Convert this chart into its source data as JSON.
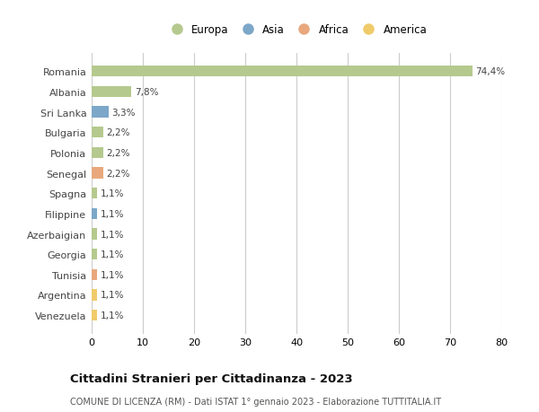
{
  "countries": [
    "Romania",
    "Albania",
    "Sri Lanka",
    "Bulgaria",
    "Polonia",
    "Senegal",
    "Spagna",
    "Filippine",
    "Azerbaigian",
    "Georgia",
    "Tunisia",
    "Argentina",
    "Venezuela"
  ],
  "values": [
    74.4,
    7.8,
    3.3,
    2.2,
    2.2,
    2.2,
    1.1,
    1.1,
    1.1,
    1.1,
    1.1,
    1.1,
    1.1
  ],
  "labels": [
    "74,4%",
    "7,8%",
    "3,3%",
    "2,2%",
    "2,2%",
    "2,2%",
    "1,1%",
    "1,1%",
    "1,1%",
    "1,1%",
    "1,1%",
    "1,1%",
    "1,1%"
  ],
  "continents": [
    "Europa",
    "Europa",
    "Asia",
    "Europa",
    "Europa",
    "Africa",
    "Europa",
    "Asia",
    "Europa",
    "Europa",
    "Africa",
    "America",
    "America"
  ],
  "colors": {
    "Europa": "#b5c98e",
    "Asia": "#7ca7c8",
    "Africa": "#e8a87c",
    "America": "#f0cb6a"
  },
  "title": "Cittadini Stranieri per Cittadinanza - 2023",
  "subtitle": "COMUNE DI LICENZA (RM) - Dati ISTAT 1° gennaio 2023 - Elaborazione TUTTITALIA.IT",
  "xlim": [
    0,
    80
  ],
  "background_color": "#ffffff",
  "grid_color": "#cccccc",
  "bar_height": 0.55,
  "legend_order": [
    "Europa",
    "Asia",
    "Africa",
    "America"
  ]
}
